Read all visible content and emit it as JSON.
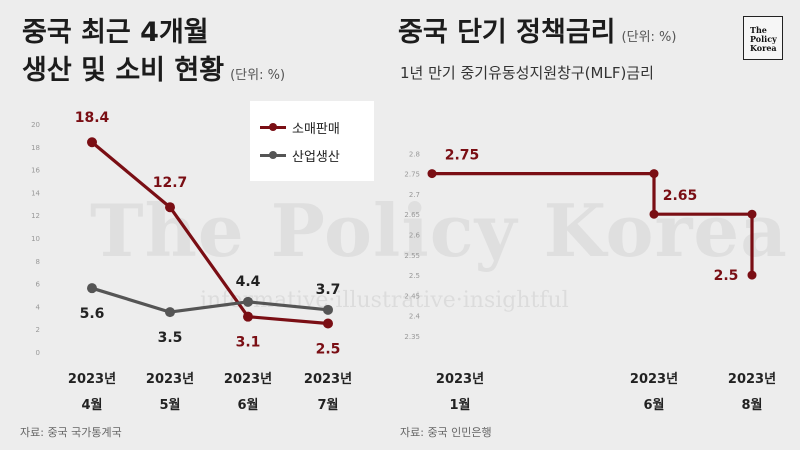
{
  "left": {
    "title_line1": "중국 최근 4개월",
    "title_line2": "생산 및 소비 현황",
    "unit": "(단위: %)",
    "source": "자료: 중국 국가통계국"
  },
  "right": {
    "title": "중국 단기 정책금리",
    "unit": "(단위: %)",
    "subtitle": "1년 만기 중기유동성지원창구(MLF)금리",
    "source": "자료: 중국 인민은행"
  },
  "logo": {
    "line1": "The",
    "line2": "Policy",
    "line3": "Korea"
  },
  "watermark": {
    "text": "The Policy Korea",
    "tagline": "informative·illustrative·insightful"
  },
  "colors": {
    "retail": "#7a0e14",
    "industrial": "#555555",
    "background": "#ededed"
  },
  "chart_data": [
    {
      "type": "line",
      "title": "중국 최근 4개월 생산 및 소비 현황",
      "ylabel": "(단위: %)",
      "categories": [
        "2023년 4월",
        "2023년 5월",
        "2023년 6월",
        "2023년 7월"
      ],
      "category_lines": [
        [
          "2023년",
          "4월"
        ],
        [
          "2023년",
          "5월"
        ],
        [
          "2023년",
          "6월"
        ],
        [
          "2023년",
          "7월"
        ]
      ],
      "series": [
        {
          "name": "소매판매",
          "values": [
            18.4,
            12.7,
            3.1,
            2.5
          ],
          "color": "#7a0e14"
        },
        {
          "name": "산업생산",
          "values": [
            5.6,
            3.5,
            4.4,
            3.7
          ],
          "color": "#555555"
        }
      ],
      "ylim": [
        0,
        20
      ],
      "yticks": [
        0,
        2,
        4,
        6,
        8,
        10,
        12,
        14,
        16,
        18,
        20
      ],
      "legend": "top-right",
      "grid": false
    },
    {
      "type": "line",
      "step": true,
      "title": "중국 단기 정책금리",
      "subtitle": "1년 만기 중기유동성지원창구(MLF)금리",
      "ylabel": "(단위: %)",
      "categories": [
        "2023년 1월",
        "2023년 6월",
        "2023년 8월"
      ],
      "category_lines": [
        [
          "2023년",
          "1월"
        ],
        [
          "2023년",
          "6월"
        ],
        [
          "2023년",
          "8월"
        ]
      ],
      "x_month": [
        1,
        6,
        8
      ],
      "series": [
        {
          "name": "MLF금리",
          "values": [
            2.75,
            2.65,
            2.5
          ],
          "color": "#7a0e14"
        }
      ],
      "ylim": [
        2.3,
        2.8
      ],
      "yticks": [
        2.35,
        2.4,
        2.45,
        2.5,
        2.55,
        2.6,
        2.65,
        2.7,
        2.75,
        2.8
      ],
      "grid": false
    }
  ]
}
